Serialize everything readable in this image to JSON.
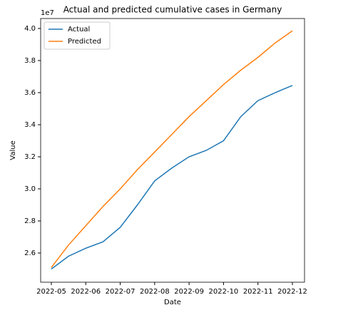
{
  "chart_data": {
    "type": "line",
    "title": "Actual and predicted cumulative cases in Germany",
    "xlabel": "Date",
    "ylabel": "Value",
    "y_offset_label": "1e7",
    "xticks": [
      "2022-05",
      "2022-06",
      "2022-07",
      "2022-08",
      "2022-09",
      "2022-10",
      "2022-11",
      "2022-12"
    ],
    "ylim": [
      2.418,
      4.062
    ],
    "yticks": [
      2.6,
      2.8,
      {
        "value": 3,
        "label": "3.0"
      },
      3.2,
      3.4,
      3.6,
      3.8,
      {
        "value": 4,
        "label": "4.0"
      }
    ],
    "legend": "upper left",
    "series": [
      {
        "name": "Actual",
        "color": "#1f77b4",
        "values": [
          2.5,
          2.58,
          2.63,
          2.67,
          2.76,
          2.9,
          3.05,
          3.13,
          3.2,
          3.24,
          3.3,
          3.45,
          3.55,
          3.6,
          3.645
        ]
      },
      {
        "name": "Predicted",
        "color": "#ff7f0e",
        "values": [
          2.51,
          2.65,
          2.77,
          2.89,
          3.0,
          3.12,
          3.23,
          3.34,
          3.45,
          3.55,
          3.65,
          3.74,
          3.82,
          3.91,
          3.985
        ]
      }
    ]
  }
}
